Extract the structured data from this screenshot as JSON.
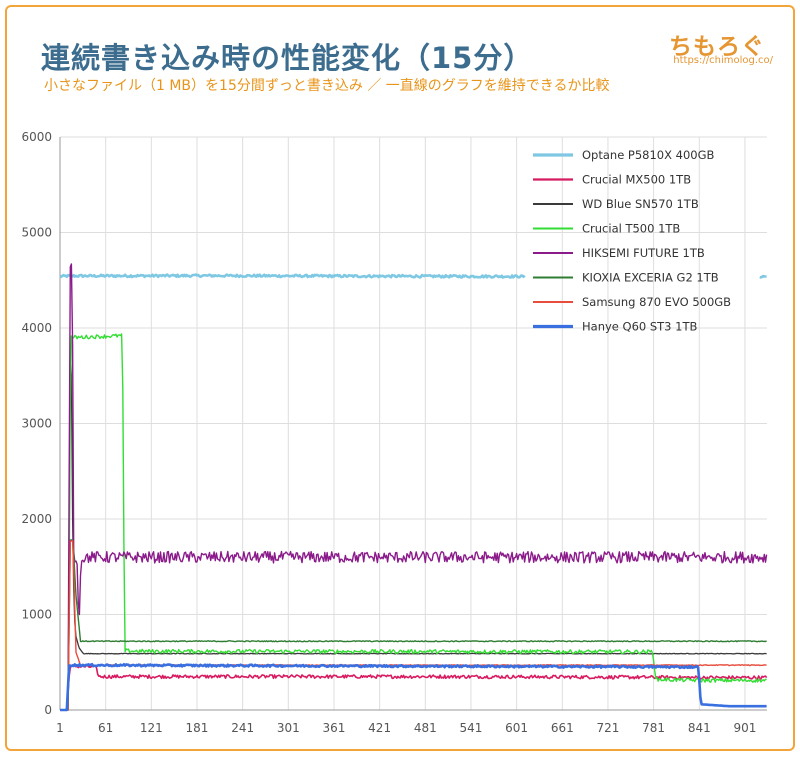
{
  "title": "連続書き込み時の性能変化（15分）",
  "subtitle": "小さなファイル（1 MB）を15分間ずっと書き込み ／ 一直線のグラフを維持できるか比較",
  "logo": {
    "text": "ちもろぐ",
    "url": "https://chimolog.co/"
  },
  "colors": {
    "frame": "#f3a53a",
    "title": "#3d6d8e",
    "subtitle": "#e8951b",
    "grid": "#dedede"
  },
  "chart_data": {
    "type": "line",
    "title": "連続書き込み時の性能変化（15分）",
    "xlim": [
      1,
      930
    ],
    "ylim": [
      0,
      6000
    ],
    "xticks": [
      1,
      61,
      121,
      181,
      241,
      301,
      361,
      421,
      481,
      541,
      601,
      661,
      721,
      781,
      841,
      901
    ],
    "yticks": [
      0,
      1000,
      2000,
      3000,
      4000,
      5000,
      6000
    ],
    "grid": true,
    "legend_position": "top-right",
    "series": [
      {
        "name": "Optane P5810X 400GB",
        "color": "#7ec8e3",
        "width": 2.6,
        "noise": 12,
        "gaps": [
          [
            612,
            920
          ]
        ],
        "points": [
          [
            1,
            4540
          ],
          [
            12,
            4545
          ],
          [
            200,
            4548
          ],
          [
            400,
            4543
          ],
          [
            612,
            4540
          ],
          [
            920,
            4540
          ],
          [
            930,
            4540
          ]
        ]
      },
      {
        "name": "Crucial MX500 1TB",
        "color": "#d81b60",
        "width": 1.6,
        "noise": 18,
        "points": [
          [
            1,
            0
          ],
          [
            10,
            0
          ],
          [
            14,
            460
          ],
          [
            48,
            450
          ],
          [
            52,
            350
          ],
          [
            500,
            350
          ],
          [
            700,
            345
          ],
          [
            850,
            340
          ],
          [
            930,
            340
          ]
        ]
      },
      {
        "name": "WD Blue SN570 1TB",
        "color": "#3a3a3a",
        "width": 1.3,
        "noise": 3,
        "points": [
          [
            1,
            0
          ],
          [
            12,
            0
          ],
          [
            15,
            4500
          ],
          [
            18,
            1500
          ],
          [
            21,
            800
          ],
          [
            26,
            650
          ],
          [
            32,
            590
          ],
          [
            930,
            590
          ]
        ]
      },
      {
        "name": "Crucial T500 1TB",
        "color": "#33dd33",
        "width": 1.4,
        "noise": 20,
        "points": [
          [
            1,
            0
          ],
          [
            12,
            0
          ],
          [
            15,
            3900
          ],
          [
            83,
            3920
          ],
          [
            86,
            620
          ],
          [
            110,
            615
          ],
          [
            780,
            610
          ],
          [
            784,
            320
          ],
          [
            850,
            310
          ],
          [
            930,
            310
          ]
        ]
      },
      {
        "name": "HIKSEMI FUTURE 1TB",
        "color": "#8b1a8b",
        "width": 1.4,
        "noise": 60,
        "points": [
          [
            1,
            0
          ],
          [
            12,
            0
          ],
          [
            14,
            4600
          ],
          [
            17,
            4650
          ],
          [
            19,
            1600
          ],
          [
            23,
            1600
          ],
          [
            26,
            950
          ],
          [
            29,
            1600
          ],
          [
            930,
            1600
          ]
        ]
      },
      {
        "name": "KIOXIA EXCERIA G2 1TB",
        "color": "#2e7d32",
        "width": 1.4,
        "noise": 5,
        "points": [
          [
            1,
            0
          ],
          [
            12,
            0
          ],
          [
            14,
            1780
          ],
          [
            18,
            1780
          ],
          [
            22,
            1200
          ],
          [
            28,
            720
          ],
          [
            500,
            720
          ],
          [
            930,
            720
          ]
        ]
      },
      {
        "name": "Samsung 870 EVO 500GB",
        "color": "#e74c3c",
        "width": 1.4,
        "noise": 4,
        "points": [
          [
            1,
            0
          ],
          [
            12,
            0
          ],
          [
            14,
            1770
          ],
          [
            18,
            1770
          ],
          [
            22,
            600
          ],
          [
            28,
            470
          ],
          [
            930,
            470
          ]
        ]
      },
      {
        "name": "Hanye Q60 ST3 1TB",
        "color": "#3a6fe0",
        "width": 2.6,
        "noise": 10,
        "points": [
          [
            1,
            0
          ],
          [
            10,
            0
          ],
          [
            13,
            470
          ],
          [
            840,
            450
          ],
          [
            843,
            60
          ],
          [
            880,
            40
          ],
          [
            930,
            40
          ]
        ]
      }
    ]
  }
}
